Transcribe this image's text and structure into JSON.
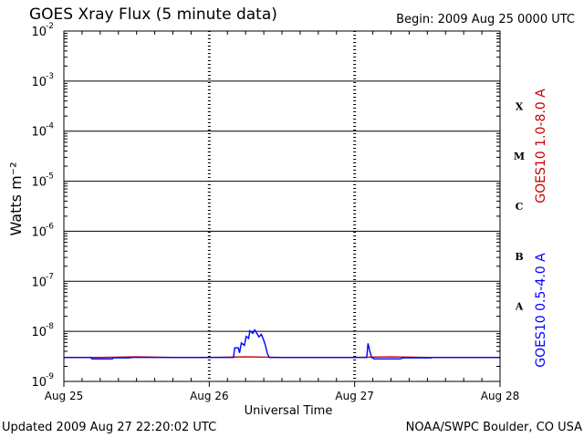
{
  "header": {
    "title": "GOES Xray Flux (5 minute data)",
    "begin": "Begin:  2009 Aug 25 0000 UTC"
  },
  "footer": {
    "updated": "Updated 2009 Aug 27 22:20:02 UTC",
    "credit": "NOAA/SWPC Boulder, CO USA"
  },
  "colors": {
    "long": "#cc0000",
    "short": "#0000ff",
    "grid": "#000000"
  },
  "chart_data": {
    "type": "line",
    "title": "GOES Xray Flux (5 minute data)",
    "xlabel": "Universal Time",
    "ylabel": "Watts m⁻²",
    "yscale": "log",
    "ylim_exp": [
      -9,
      -2
    ],
    "xlim_hours": [
      0,
      72
    ],
    "x_ticks": [
      {
        "hour": 0,
        "label": "Aug 25"
      },
      {
        "hour": 24,
        "label": "Aug 26"
      },
      {
        "hour": 48,
        "label": "Aug 27"
      },
      {
        "hour": 72,
        "label": "Aug 28"
      }
    ],
    "y_tick_base": "10",
    "y_tick_exps": [
      "-9",
      "-8",
      "-7",
      "-6",
      "-5",
      "-4",
      "-3",
      "-2"
    ],
    "flare_classes": [
      {
        "label": "A",
        "level_exp": -7.5
      },
      {
        "label": "B",
        "level_exp": -6.5
      },
      {
        "label": "C",
        "level_exp": -5.5
      },
      {
        "label": "M",
        "level_exp": -4.5
      },
      {
        "label": "X",
        "level_exp": -3.5
      }
    ],
    "series": [
      {
        "name": "GOES10 1.0-8.0 A",
        "color": "#cc0000",
        "points": [
          [
            0,
            -8.52
          ],
          [
            6,
            -8.52
          ],
          [
            12,
            -8.51
          ],
          [
            18,
            -8.52
          ],
          [
            24,
            -8.52
          ],
          [
            30,
            -8.51
          ],
          [
            36,
            -8.52
          ],
          [
            42,
            -8.52
          ],
          [
            48,
            -8.52
          ],
          [
            54,
            -8.51
          ],
          [
            60,
            -8.52
          ],
          [
            66,
            -8.52
          ],
          [
            72,
            -8.52
          ]
        ]
      },
      {
        "name": "GOES10 0.5-4.0 A",
        "color": "#0000ff",
        "points": [
          [
            0,
            -8.52
          ],
          [
            2.3,
            -8.52
          ],
          [
            4.5,
            -8.52
          ],
          [
            4.6,
            -8.55
          ],
          [
            8.0,
            -8.55
          ],
          [
            8.1,
            -8.53
          ],
          [
            10.8,
            -8.53
          ],
          [
            11.3,
            -8.52
          ],
          [
            26.4,
            -8.52
          ],
          [
            27,
            -8.52
          ],
          [
            28.0,
            -8.52
          ],
          [
            28.2,
            -8.33
          ],
          [
            28.8,
            -8.33
          ],
          [
            29.0,
            -8.43
          ],
          [
            29.3,
            -8.23
          ],
          [
            29.8,
            -8.28
          ],
          [
            30.1,
            -8.1
          ],
          [
            30.5,
            -8.14
          ],
          [
            30.7,
            -7.99
          ],
          [
            31.2,
            -8.04
          ],
          [
            31.5,
            -7.97
          ],
          [
            31.9,
            -8.05
          ],
          [
            32.2,
            -8.11
          ],
          [
            32.6,
            -8.06
          ],
          [
            33.0,
            -8.18
          ],
          [
            33.3,
            -8.3
          ],
          [
            33.6,
            -8.45
          ],
          [
            33.9,
            -8.52
          ],
          [
            39,
            -8.52
          ],
          [
            45,
            -8.52
          ],
          [
            49.0,
            -8.52
          ],
          [
            50.0,
            -8.52
          ],
          [
            50.2,
            -8.24
          ],
          [
            50.5,
            -8.4
          ],
          [
            50.8,
            -8.52
          ],
          [
            51.2,
            -8.55
          ],
          [
            55.5,
            -8.55
          ],
          [
            56.0,
            -8.53
          ],
          [
            60.5,
            -8.53
          ],
          [
            61.0,
            -8.52
          ],
          [
            72,
            -8.52
          ]
        ]
      }
    ]
  }
}
